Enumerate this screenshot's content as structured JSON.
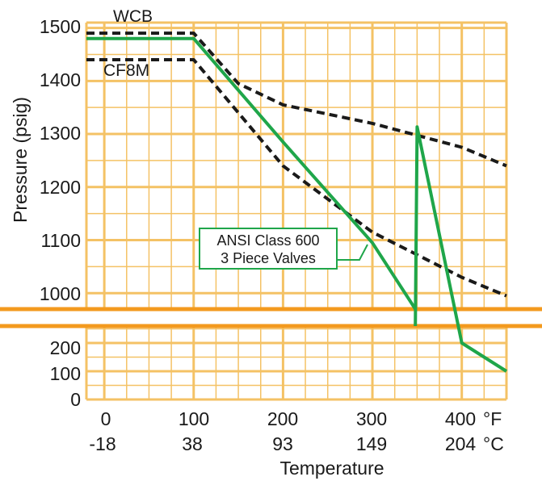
{
  "chart_data": {
    "type": "line",
    "xlabel": "Temperature",
    "ylabel": "Pressure (psig)",
    "x_ticks_f": [
      "0",
      "100",
      "200",
      "300",
      "400"
    ],
    "x_ticks_c": [
      "-18",
      "38",
      "93",
      "149",
      "204"
    ],
    "x_unit_f": "°F",
    "x_unit_c": "°C",
    "y_ticks_upper": [
      "1000",
      "1100",
      "1200",
      "1300",
      "1400",
      "1500"
    ],
    "y_ticks_lower": [
      "0",
      "100",
      "200"
    ],
    "xlim": [
      -20,
      450
    ],
    "ylim_upper": [
      970,
      1510
    ],
    "ylim_lower": [
      0,
      260
    ],
    "axis_break": true,
    "grid": true,
    "colors": {
      "grid": "#f4c265",
      "break_line": "#f39a1e",
      "ansi": "#1fa64a",
      "dashed": "#1a1a1a"
    },
    "series": [
      {
        "name": "WCB",
        "style": "dashed",
        "x": [
          -20,
          100,
          150,
          200,
          300,
          400,
          450
        ],
        "y": [
          1490,
          1490,
          1395,
          1355,
          1320,
          1275,
          1240
        ]
      },
      {
        "name": "CF8M",
        "style": "dashed",
        "x": [
          -20,
          100,
          200,
          300,
          400,
          450
        ],
        "y": [
          1440,
          1440,
          1240,
          1115,
          1030,
          995
        ]
      },
      {
        "name": "ANSI Class 600",
        "style": "solid",
        "x": [
          -20,
          100,
          200,
          300,
          350,
          400,
          450
        ],
        "y": [
          1480,
          1480,
          1285,
          1095,
          965,
          200,
          100
        ]
      }
    ],
    "annotation": {
      "line1": "ANSI Class 600",
      "line2": "3 Piece Valves"
    }
  }
}
